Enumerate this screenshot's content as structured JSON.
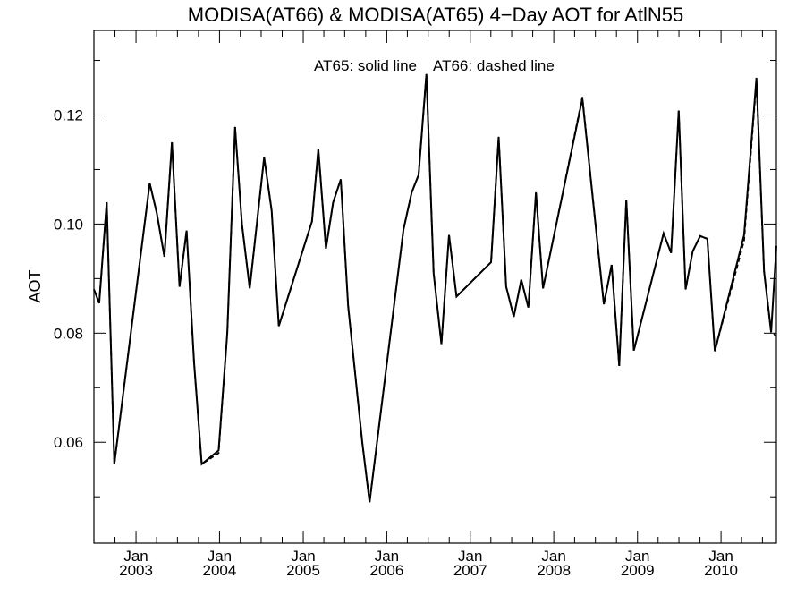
{
  "chart_data": {
    "type": "line",
    "title": "MODISA(AT66) & MODISA(AT65) 4−Day AOT for AtlN55",
    "annotation_solid": "AT65: solid line",
    "annotation_dashed": "AT66: dashed line",
    "xlabel": "",
    "ylabel": "AOT",
    "ylim": [
      0.0415,
      0.1355
    ],
    "xlim": [
      "2002-07-01",
      "2010-08-31"
    ],
    "y_ticks": [
      "0.06",
      "0.08",
      "0.10",
      "0.12"
    ],
    "x_ticks": [
      {
        "month": "Jan",
        "year": "2003",
        "date": "2003-01-01"
      },
      {
        "month": "Jan",
        "year": "2004",
        "date": "2004-01-01"
      },
      {
        "month": "Jan",
        "year": "2005",
        "date": "2005-01-01"
      },
      {
        "month": "Jan",
        "year": "2006",
        "date": "2006-01-01"
      },
      {
        "month": "Jan",
        "year": "2007",
        "date": "2007-01-01"
      },
      {
        "month": "Jan",
        "year": "2008",
        "date": "2008-01-01"
      },
      {
        "month": "Jan",
        "year": "2009",
        "date": "2009-01-01"
      },
      {
        "month": "Jan",
        "year": "2010",
        "date": "2010-01-01"
      }
    ],
    "series": [
      {
        "name": "AT65",
        "style": "solid",
        "color": "#000000",
        "points": [
          [
            "2002-07-01",
            0.088
          ],
          [
            "2002-07-24",
            0.0855
          ],
          [
            "2002-08-26",
            0.104
          ],
          [
            "2002-09-28",
            0.056
          ],
          [
            "2003-03-02",
            0.1075
          ],
          [
            "2003-04-02",
            0.102
          ],
          [
            "2003-05-05",
            0.094
          ],
          [
            "2003-06-07",
            0.115
          ],
          [
            "2003-07-10",
            0.0885
          ],
          [
            "2003-08-10",
            0.0988
          ],
          [
            "2003-09-12",
            0.0745
          ],
          [
            "2003-10-15",
            0.056
          ],
          [
            "2003-12-28",
            0.0585
          ],
          [
            "2004-02-04",
            0.08
          ],
          [
            "2004-03-09",
            0.1178
          ],
          [
            "2004-04-08",
            0.1
          ],
          [
            "2004-05-12",
            0.0882
          ],
          [
            "2004-07-14",
            0.1122
          ],
          [
            "2004-08-16",
            0.1025
          ],
          [
            "2004-09-16",
            0.0813
          ],
          [
            "2005-02-08",
            0.1005
          ],
          [
            "2005-03-08",
            0.1138
          ],
          [
            "2005-04-10",
            0.0955
          ],
          [
            "2005-05-12",
            0.104
          ],
          [
            "2005-06-14",
            0.1082
          ],
          [
            "2005-07-16",
            0.085
          ],
          [
            "2005-09-16",
            0.06
          ],
          [
            "2005-10-18",
            0.049
          ],
          [
            "2006-03-15",
            0.099
          ],
          [
            "2006-04-20",
            0.1058
          ],
          [
            "2006-05-20",
            0.109
          ],
          [
            "2006-06-23",
            0.1275
          ],
          [
            "2006-07-25",
            0.091
          ],
          [
            "2006-08-28",
            0.078
          ],
          [
            "2006-09-30",
            0.098
          ],
          [
            "2006-11-02",
            0.0867
          ],
          [
            "2007-04-02",
            0.093
          ],
          [
            "2007-05-05",
            0.116
          ],
          [
            "2007-06-07",
            0.0885
          ],
          [
            "2007-07-10",
            0.083
          ],
          [
            "2007-08-12",
            0.0898
          ],
          [
            "2007-09-12",
            0.0847
          ],
          [
            "2007-10-15",
            0.1058
          ],
          [
            "2007-11-15",
            0.0882
          ],
          [
            "2008-05-05",
            0.123
          ],
          [
            "2008-08-07",
            0.0853
          ],
          [
            "2008-09-10",
            0.0925
          ],
          [
            "2008-10-13",
            0.074
          ],
          [
            "2008-11-13",
            0.1045
          ],
          [
            "2008-12-16",
            0.0768
          ],
          [
            "2009-04-25",
            0.0983
          ],
          [
            "2009-05-28",
            0.0947
          ],
          [
            "2009-06-30",
            0.1208
          ],
          [
            "2009-07-30",
            0.088
          ],
          [
            "2009-08-30",
            0.095
          ],
          [
            "2009-10-02",
            0.0978
          ],
          [
            "2009-11-02",
            0.0973
          ],
          [
            "2009-12-05",
            0.0767
          ],
          [
            "2010-04-12",
            0.098
          ],
          [
            "2010-06-05",
            0.1268
          ],
          [
            "2010-07-08",
            0.0913
          ],
          [
            "2010-08-08",
            0.0802
          ],
          [
            "2010-08-31",
            0.096
          ]
        ]
      },
      {
        "name": "AT66",
        "style": "dashed",
        "color": "#000000",
        "points": [
          [
            "2002-07-01",
            0.088
          ],
          [
            "2002-07-24",
            0.0855
          ],
          [
            "2002-08-26",
            0.104
          ],
          [
            "2002-09-28",
            0.056
          ],
          [
            "2003-03-02",
            0.1075
          ],
          [
            "2003-04-02",
            0.102
          ],
          [
            "2003-05-05",
            0.094
          ],
          [
            "2003-06-07",
            0.115
          ],
          [
            "2003-07-10",
            0.0885
          ],
          [
            "2003-08-10",
            0.0988
          ],
          [
            "2003-09-12",
            0.0745
          ],
          [
            "2003-10-15",
            0.056
          ],
          [
            "2003-12-28",
            0.058
          ],
          [
            "2004-02-04",
            0.08
          ],
          [
            "2004-03-09",
            0.1178
          ],
          [
            "2004-04-08",
            0.1
          ],
          [
            "2004-05-12",
            0.0882
          ],
          [
            "2004-07-14",
            0.1122
          ],
          [
            "2004-08-16",
            0.1025
          ],
          [
            "2004-09-16",
            0.0813
          ],
          [
            "2005-02-08",
            0.1005
          ],
          [
            "2005-03-08",
            0.1138
          ],
          [
            "2005-04-10",
            0.0955
          ],
          [
            "2005-05-12",
            0.104
          ],
          [
            "2005-06-14",
            0.1082
          ],
          [
            "2005-07-16",
            0.085
          ],
          [
            "2005-09-16",
            0.06
          ],
          [
            "2005-10-18",
            0.049
          ],
          [
            "2006-03-15",
            0.099
          ],
          [
            "2006-04-20",
            0.1058
          ],
          [
            "2006-05-20",
            0.109
          ],
          [
            "2006-06-23",
            0.1275
          ],
          [
            "2006-07-25",
            0.091
          ],
          [
            "2006-08-28",
            0.078
          ],
          [
            "2006-09-30",
            0.098
          ],
          [
            "2006-11-02",
            0.0867
          ],
          [
            "2007-04-02",
            0.093
          ],
          [
            "2007-05-05",
            0.116
          ],
          [
            "2007-06-07",
            0.0885
          ],
          [
            "2007-07-10",
            0.083
          ],
          [
            "2007-08-12",
            0.0898
          ],
          [
            "2007-09-12",
            0.0847
          ],
          [
            "2007-10-15",
            0.1058
          ],
          [
            "2007-11-15",
            0.0882
          ],
          [
            "2008-05-05",
            0.1233
          ],
          [
            "2008-08-07",
            0.0853
          ],
          [
            "2008-09-10",
            0.0925
          ],
          [
            "2008-10-13",
            0.074
          ],
          [
            "2008-11-13",
            0.1045
          ],
          [
            "2008-12-16",
            0.0768
          ],
          [
            "2009-04-25",
            0.0983
          ],
          [
            "2009-05-28",
            0.0947
          ],
          [
            "2009-06-30",
            0.1208
          ],
          [
            "2009-07-30",
            0.088
          ],
          [
            "2009-08-30",
            0.095
          ],
          [
            "2009-10-02",
            0.0978
          ],
          [
            "2009-11-02",
            0.0973
          ],
          [
            "2009-12-05",
            0.0767
          ],
          [
            "2010-04-12",
            0.097
          ],
          [
            "2010-06-05",
            0.1262
          ],
          [
            "2010-07-08",
            0.0913
          ],
          [
            "2010-08-08",
            0.0802
          ],
          [
            "2010-08-31",
            0.0795
          ]
        ]
      }
    ],
    "grid": false,
    "legend": "top-center text annotation"
  }
}
